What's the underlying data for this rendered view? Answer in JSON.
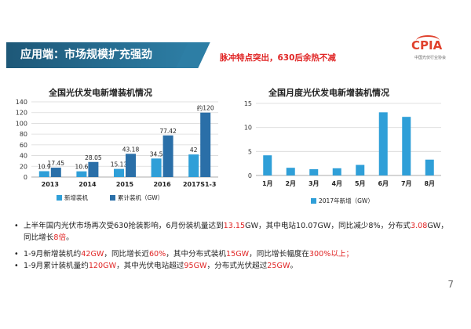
{
  "slide": {
    "title": "应用端：市场规模扩充强劲",
    "headline": "脉冲特点突出，630后余热不减",
    "logo_text": "CPIA",
    "logo_subtext": "中国光伏行业协会",
    "page_number": "7"
  },
  "colors": {
    "dark_blue": "#2a6fa8",
    "light_blue": "#2f9fd8",
    "red": "#e02424",
    "title_bar": "#1e5878"
  },
  "chart_data": [
    {
      "type": "bar",
      "title": "全国光伏发电新增装机情况",
      "categories": [
        "2013",
        "2014",
        "2015",
        "2016",
        "2017S1-3"
      ],
      "series": [
        {
          "name": "新增装机",
          "values": [
            10.9,
            10.6,
            15.13,
            34.5,
            42
          ],
          "labels": [
            "10.9",
            "10.6",
            "15.13",
            "34.5",
            "42"
          ]
        },
        {
          "name": "累计装机（GW）",
          "values": [
            17.45,
            28.05,
            43.18,
            77.42,
            120
          ],
          "labels": [
            "17.45",
            "28.05",
            "43.18",
            "77.42",
            "约120"
          ]
        }
      ],
      "ylim": [
        0,
        140
      ],
      "yticks": [
        "0",
        "20",
        "40",
        "60",
        "80",
        "100",
        "120",
        "140"
      ],
      "grid": true,
      "legend": "bottom"
    },
    {
      "type": "bar",
      "title": "全国月度光伏发电新增装机情况",
      "categories": [
        "1月",
        "2月",
        "3月",
        "4月",
        "5月",
        "6月",
        "7月",
        "8月"
      ],
      "series": [
        {
          "name": "2017年新增（GW）",
          "values": [
            4.2,
            1.6,
            1.3,
            1.5,
            2.2,
            13.15,
            12.2,
            3.3
          ]
        }
      ],
      "ylim": [
        0,
        15
      ],
      "yticks": [
        "0",
        "5",
        "10",
        "15"
      ],
      "grid": true,
      "legend": "bottom"
    }
  ],
  "bullets": [
    {
      "dot": "•",
      "parts": [
        {
          "t": "上半年国内光伏市场再次受630抢装影响，6月份装机量达到",
          "hl": false
        },
        {
          "t": "13.15",
          "hl": true
        },
        {
          "t": "GW，其中电站10.07GW，同比减少8%，分布式",
          "hl": false
        },
        {
          "t": "3.08",
          "hl": true
        },
        {
          "t": "GW，同比增长",
          "hl": false
        },
        {
          "t": "8倍",
          "hl": true
        },
        {
          "t": "。",
          "hl": false
        }
      ]
    },
    {
      "dot": "•",
      "parts": [
        {
          "t": "1-9月新增装机约",
          "hl": false
        },
        {
          "t": "42GW",
          "hl": true
        },
        {
          "t": "，同比增长近",
          "hl": false
        },
        {
          "t": "60%",
          "hl": true
        },
        {
          "t": "，其中分布式装机",
          "hl": false
        },
        {
          "t": "15GW",
          "hl": true
        },
        {
          "t": "，同比增长幅度在",
          "hl": false
        },
        {
          "t": "300%以上；",
          "hl": true
        }
      ]
    },
    {
      "dot": "•",
      "parts": [
        {
          "t": "1-9月累计装机量约",
          "hl": false
        },
        {
          "t": "120GW",
          "hl": true
        },
        {
          "t": "，其中光伏电站超过",
          "hl": false
        },
        {
          "t": "95GW",
          "hl": true
        },
        {
          "t": "，分布式光伏超过",
          "hl": false
        },
        {
          "t": "25GW",
          "hl": true
        },
        {
          "t": "。",
          "hl": false
        }
      ]
    }
  ]
}
